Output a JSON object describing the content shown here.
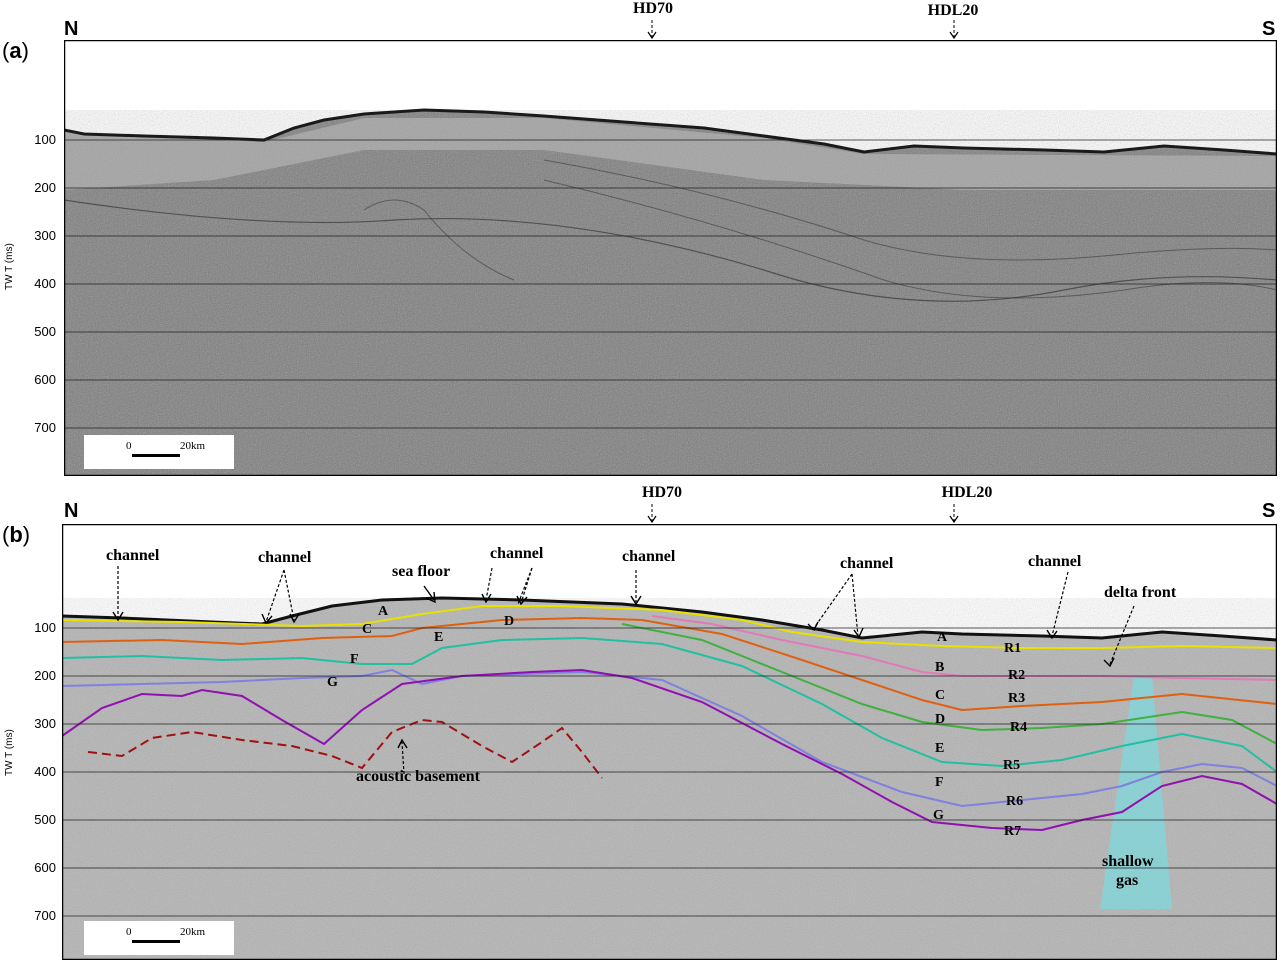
{
  "directions": {
    "north": "N",
    "south": "S"
  },
  "panels": [
    {
      "id": "a",
      "label": "a",
      "wells": [
        "HD70",
        "HDL20"
      ],
      "y_axis_title": "TW T (ms)",
      "y_ticks": [
        "100",
        "200",
        "300",
        "400",
        "500",
        "600",
        "700"
      ],
      "scale_bar": {
        "start": "0",
        "end": "20km"
      }
    },
    {
      "id": "b",
      "label": "b",
      "wells": [
        "HD70",
        "HDL20"
      ],
      "y_axis_title": "TW T (ms)",
      "y_ticks": [
        "100",
        "200",
        "300",
        "400",
        "500",
        "600",
        "700"
      ],
      "scale_bar": {
        "start": "0",
        "end": "20km"
      },
      "annotations": {
        "channel": "channel",
        "sea_floor": "sea floor",
        "delta_front": "delta front",
        "acoustic_basement": "acoustic basement",
        "shallow_gas_line1": "shallow",
        "shallow_gas_line2": "gas"
      },
      "units": [
        "A",
        "B",
        "C",
        "D",
        "E",
        "F",
        "G"
      ],
      "reflectors": [
        {
          "name": "R1",
          "color": "#e8e000"
        },
        {
          "name": "R2",
          "color": "#e07ab8"
        },
        {
          "name": "R3",
          "color": "#e06010"
        },
        {
          "name": "R4",
          "color": "#40b040"
        },
        {
          "name": "R5",
          "color": "#20c0a0"
        },
        {
          "name": "R6",
          "color": "#8080e0"
        },
        {
          "name": "R7",
          "color": "#9010b0"
        }
      ],
      "basement_color": "#a01010",
      "gas_color": "#7fd8dc"
    }
  ]
}
